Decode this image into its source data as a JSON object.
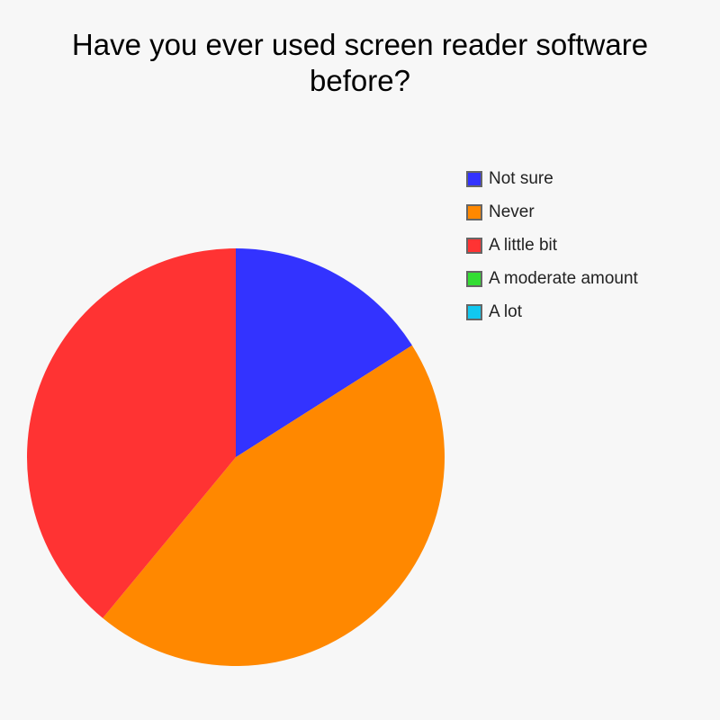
{
  "chart_data": {
    "type": "pie",
    "title_lines": [
      "Have you ever used screen reader software",
      "before?"
    ],
    "legend_position": "top-right",
    "categories": [
      "Not sure",
      "Never",
      "A little bit",
      "A moderate amount",
      "A lot"
    ],
    "values": [
      16,
      45,
      39,
      0,
      0
    ],
    "colors": [
      "#3333ff",
      "#ff8800",
      "#ff3333",
      "#33dd33",
      "#11c8f0"
    ]
  }
}
